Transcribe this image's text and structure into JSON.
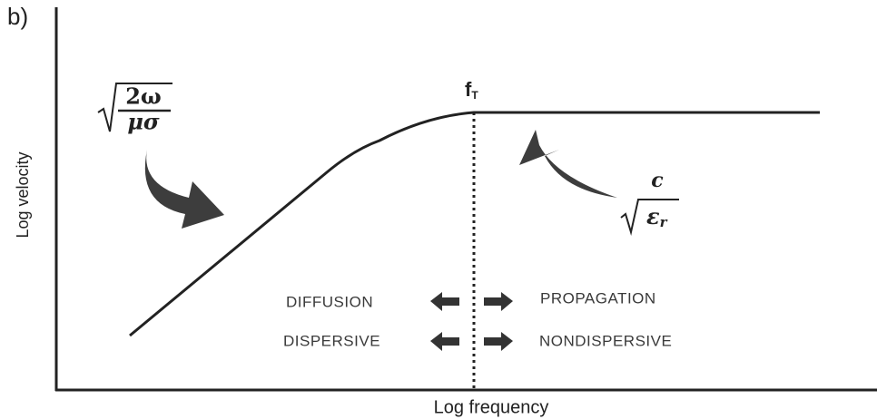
{
  "panel_label": "b)",
  "axes": {
    "y_label": "Log velocity",
    "x_label": "Log frequency"
  },
  "transition": {
    "symbol": "f",
    "subscript": "T"
  },
  "low_freq_formula": {
    "numerator": "2ω",
    "denominator": "μσ"
  },
  "high_freq_formula": {
    "numerator": "c",
    "radicand": "ε",
    "subscript": "r"
  },
  "regimes": {
    "left": [
      "DIFFUSION",
      "DISPERSIVE"
    ],
    "right": [
      "PROPAGATION",
      "NONDISPERSIVE"
    ]
  }
}
